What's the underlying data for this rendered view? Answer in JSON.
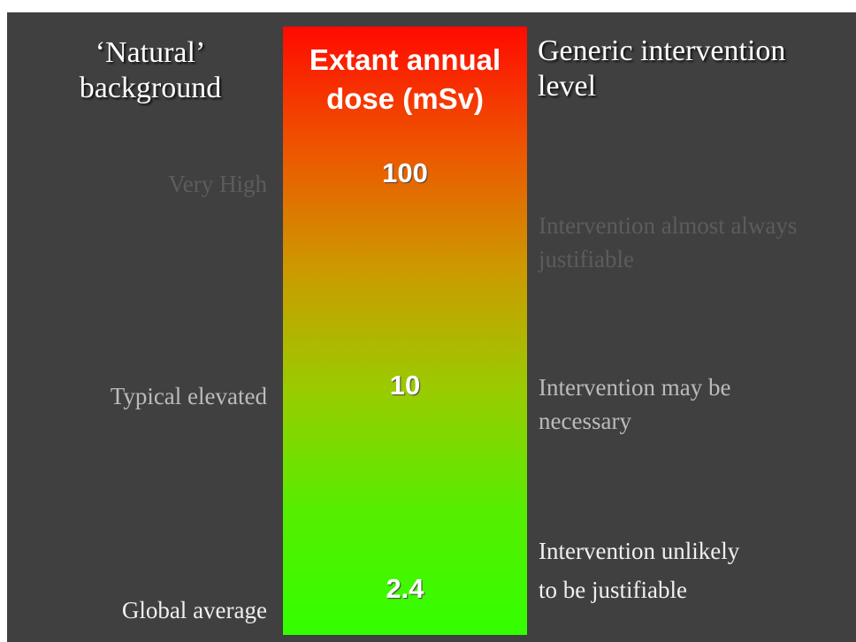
{
  "headers": {
    "background": [
      "‘Natural’",
      "background"
    ],
    "dose": [
      "Extant annual",
      "dose (mSv)"
    ],
    "intervention": [
      "Generic intervention",
      "level"
    ]
  },
  "rows": [
    {
      "background": "Very High",
      "dose": 100,
      "intervention": [
        "Intervention almost always",
        "justifiable"
      ]
    },
    {
      "background": "Typical elevated",
      "dose": 10,
      "intervention": [
        "Intervention may be",
        "necessary"
      ]
    },
    {
      "background": "Global average",
      "dose": 2.4,
      "intervention": [
        "Intervention unlikely",
        "to be justifiable"
      ]
    }
  ]
}
